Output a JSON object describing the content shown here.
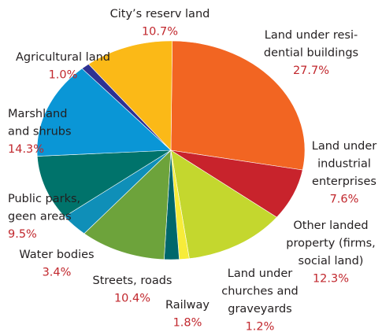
{
  "chart_data": {
    "type": "pie",
    "categories": [
      [
        "Land under resi-",
        "dential buildings"
      ],
      [
        "Land under",
        "industrial",
        "enterprises"
      ],
      [
        "Other landed",
        "property  (firms,",
        "social land)"
      ],
      [
        "Land under",
        "churches and",
        "graveyards"
      ],
      [
        "Railway"
      ],
      [
        "Streets, roads"
      ],
      [
        "Water bodies"
      ],
      [
        "Public parks,",
        "geen areas"
      ],
      [
        "Marshland",
        "and shrubs"
      ],
      [
        "Agricultural land"
      ],
      [
        "City’s reserv land"
      ]
    ],
    "values": [
      27.7,
      7.6,
      12.3,
      1.2,
      1.8,
      10.4,
      3.4,
      9.5,
      14.3,
      1.0,
      10.7
    ],
    "value_labels": [
      "27.7%",
      "7.6%",
      "12.3%",
      "1.2%",
      "1.8%",
      "10.4%",
      "3.4%",
      "9.5%",
      "14.3%",
      "1.0%",
      "10.7%"
    ],
    "colors": [
      "#f26522",
      "#c8232c",
      "#c4d72e",
      "#f7ec3a",
      "#00676b",
      "#6da33b",
      "#0f8fb8",
      "#00736b",
      "#0a96d6",
      "#2e3192",
      "#fbb917"
    ]
  }
}
